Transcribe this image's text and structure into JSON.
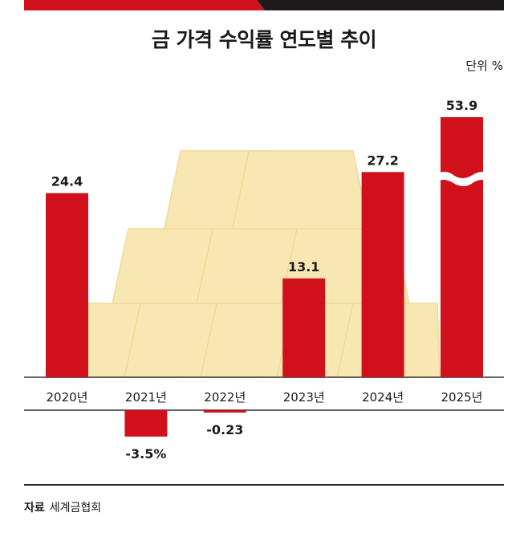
{
  "title": "금 가격 수익률 연도별 추이",
  "unit_label": "단위 %",
  "source": {
    "label": "자료",
    "value": "세계금협회"
  },
  "colors": {
    "bar": "#d0111b",
    "dark": "#1e1a1a",
    "gold": "#f8e7b2",
    "gold_edge": "#f1d999",
    "axis": "#333333"
  },
  "chart_data": {
    "type": "bar",
    "title": "금 가격 수익률 연도별 추이",
    "ylabel": "단위 %",
    "categories": [
      "2020년",
      "2021년",
      "2022년",
      "2023년",
      "2024년",
      "2025년"
    ],
    "values": [
      24.4,
      -3.5,
      -0.23,
      13.1,
      27.2,
      53.9
    ],
    "value_labels": [
      "24.4",
      "-3.5%",
      "-0.23",
      "13.1",
      "27.2",
      "53.9"
    ],
    "axis_break": {
      "category": "2025년",
      "note": "bar truncated with break mark"
    },
    "grid": false,
    "legend": "none"
  }
}
